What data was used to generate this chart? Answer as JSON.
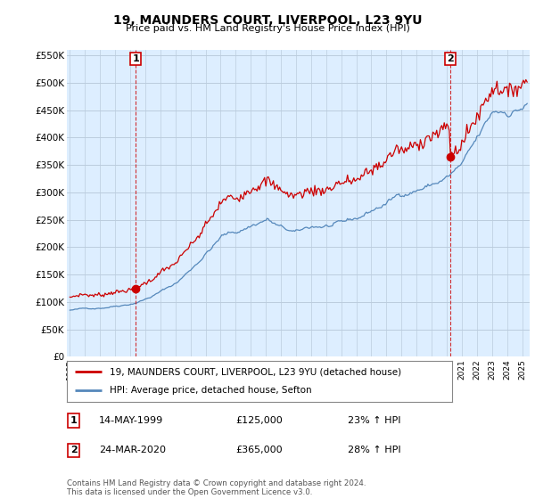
{
  "title": "19, MAUNDERS COURT, LIVERPOOL, L23 9YU",
  "subtitle": "Price paid vs. HM Land Registry's House Price Index (HPI)",
  "ylim": [
    0,
    560000
  ],
  "yticks": [
    0,
    50000,
    100000,
    150000,
    200000,
    250000,
    300000,
    350000,
    400000,
    450000,
    500000,
    550000
  ],
  "ytick_labels": [
    "£0",
    "£50K",
    "£100K",
    "£150K",
    "£200K",
    "£250K",
    "£300K",
    "£350K",
    "£400K",
    "£450K",
    "£500K",
    "£550K"
  ],
  "xmin": 1994.8,
  "xmax": 2025.5,
  "sale1_x": 1999.37,
  "sale1_y": 125000,
  "sale1_label": "1",
  "sale1_date": "14-MAY-1999",
  "sale1_price": "£125,000",
  "sale1_hpi": "23% ↑ HPI",
  "sale2_x": 2020.23,
  "sale2_y": 365000,
  "sale2_label": "2",
  "sale2_date": "24-MAR-2020",
  "sale2_price": "£365,000",
  "sale2_hpi": "28% ↑ HPI",
  "red_line_color": "#cc0000",
  "blue_line_color": "#5588bb",
  "plot_bg_color": "#ddeeff",
  "background_color": "#ffffff",
  "grid_color": "#bbccdd",
  "legend1": "19, MAUNDERS COURT, LIVERPOOL, L23 9YU (detached house)",
  "legend2": "HPI: Average price, detached house, Sefton",
  "footnote": "Contains HM Land Registry data © Crown copyright and database right 2024.\nThis data is licensed under the Open Government Licence v3.0.",
  "marker_box_color": "#cc0000"
}
